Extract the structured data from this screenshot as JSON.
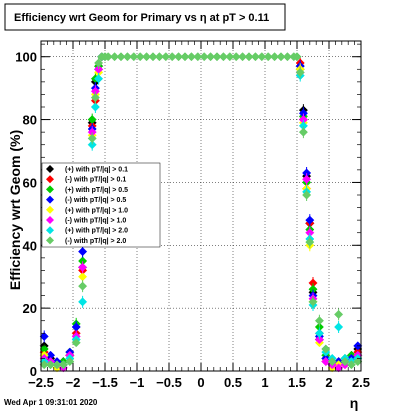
{
  "chart_data": {
    "type": "scatter",
    "title": "Efficiency wrt Geom for Primary vs   η at pT > 0.11",
    "xlabel": "η",
    "ylabel": "Efficiency wrt Geom (%)",
    "xlim": [
      -2.5,
      2.5
    ],
    "ylim": [
      0,
      105
    ],
    "xticks": [
      -2.5,
      -2,
      -1.5,
      -1,
      -0.5,
      0,
      0.5,
      1,
      1.5,
      2,
      2.5
    ],
    "xtick_labels": [
      "−2.5",
      "−2",
      "−1.5",
      "−1",
      "−0.5",
      "0",
      "0.5",
      "1",
      "1.5",
      "2",
      "2.5"
    ],
    "yticks": [
      0,
      20,
      40,
      60,
      80,
      100
    ],
    "ytick_labels": [
      "0",
      "20",
      "40",
      "60",
      "80",
      "100"
    ],
    "grid": true,
    "legend_position": "left-middle",
    "series": [
      {
        "name": "(+) with pT/|q| > 0.1",
        "color": "#000000",
        "x": [
          -2.45,
          -2.35,
          -2.25,
          -2.15,
          -2.05,
          -1.95,
          -1.85,
          -1.75,
          -1.7,
          -1.65,
          -1.6,
          -1.55,
          -1.5,
          1.5,
          1.55,
          1.6,
          1.65,
          1.7,
          1.75,
          1.85,
          1.95,
          2.05,
          2.15,
          2.25,
          2.35,
          2.45
        ],
        "y": [
          8,
          4,
          2,
          3,
          5,
          14,
          33,
          62,
          79,
          92,
          97,
          100,
          100,
          100,
          97,
          83,
          62,
          47,
          25,
          10,
          3,
          2,
          2,
          3,
          5,
          7
        ]
      },
      {
        "name": "(-) with pT/|q| > 0.1",
        "color": "#ff0000",
        "x": [
          -2.45,
          -2.35,
          -2.25,
          -2.15,
          -2.05,
          -1.95,
          -1.85,
          -1.75,
          -1.7,
          -1.65,
          -1.6,
          -1.55,
          -1.5,
          1.5,
          1.55,
          1.6,
          1.65,
          1.7,
          1.75,
          1.85,
          1.95,
          2.05,
          2.15,
          2.25,
          2.35,
          2.45
        ],
        "y": [
          6,
          3,
          2,
          2,
          5,
          12,
          32,
          60,
          78,
          86,
          96,
          100,
          100,
          100,
          98,
          80,
          58,
          47,
          28,
          12,
          4,
          2,
          3,
          2,
          4,
          6
        ]
      },
      {
        "name": "(+) with pT/|q| > 0.5",
        "color": "#00cc00",
        "x": [
          -2.45,
          -2.35,
          -2.25,
          -2.15,
          -2.05,
          -1.95,
          -1.85,
          -1.75,
          -1.7,
          -1.65,
          -1.6,
          -1.55,
          -1.5,
          1.5,
          1.55,
          1.6,
          1.65,
          1.7,
          1.75,
          1.85,
          1.95,
          2.05,
          2.15,
          2.25,
          2.35,
          2.45
        ],
        "y": [
          7,
          3,
          2,
          3,
          6,
          15,
          35,
          63,
          80,
          93,
          97,
          100,
          100,
          100,
          96,
          81,
          60,
          45,
          26,
          14,
          5,
          3,
          2,
          4,
          5,
          5
        ]
      },
      {
        "name": "(-) with pT/|q| > 0.5",
        "color": "#0000ff",
        "x": [
          -2.45,
          -2.35,
          -2.25,
          -2.15,
          -2.05,
          -1.95,
          -1.85,
          -1.75,
          -1.7,
          -1.65,
          -1.6,
          -1.55,
          -1.5,
          1.5,
          1.55,
          1.6,
          1.65,
          1.7,
          1.75,
          1.85,
          1.95,
          2.05,
          2.15,
          2.25,
          2.35,
          2.45
        ],
        "y": [
          11,
          5,
          3,
          2,
          6,
          14,
          38,
          61,
          77,
          90,
          96,
          100,
          100,
          100,
          97,
          82,
          63,
          48,
          24,
          11,
          4,
          2,
          3,
          3,
          4,
          8
        ]
      },
      {
        "name": "(+) with pT/|q| > 1.0",
        "color": "#ffff00",
        "x": [
          -2.45,
          -2.35,
          -2.25,
          -2.15,
          -2.05,
          -1.95,
          -1.85,
          -1.75,
          -1.7,
          -1.65,
          -1.6,
          -1.55,
          -1.5,
          1.5,
          1.55,
          1.6,
          1.65,
          1.7,
          1.75,
          1.85,
          1.95,
          2.05,
          2.15,
          2.25,
          2.35,
          2.45
        ],
        "y": [
          5,
          2,
          1,
          2,
          4,
          10,
          30,
          58,
          75,
          88,
          95,
          100,
          100,
          100,
          96,
          79,
          58,
          40,
          22,
          9,
          3,
          1,
          2,
          2,
          3,
          4
        ]
      },
      {
        "name": "(-) with pT/|q| > 1.0",
        "color": "#ff00ff",
        "x": [
          -2.45,
          -2.35,
          -2.25,
          -2.15,
          -2.05,
          -1.95,
          -1.85,
          -1.75,
          -1.7,
          -1.65,
          -1.6,
          -1.55,
          -1.5,
          1.5,
          1.55,
          1.6,
          1.65,
          1.7,
          1.75,
          1.85,
          1.95,
          2.05,
          2.15,
          2.25,
          2.35,
          2.45
        ],
        "y": [
          4,
          3,
          2,
          1,
          5,
          11,
          33,
          59,
          76,
          89,
          96,
          100,
          100,
          100,
          95,
          80,
          61,
          44,
          23,
          10,
          3,
          2,
          1,
          2,
          3,
          5
        ]
      },
      {
        "name": "(+) with pT/|q| > 2.0",
        "color": "#00e5e5",
        "x": [
          -2.45,
          -2.35,
          -2.25,
          -2.15,
          -2.05,
          -1.95,
          -1.85,
          -1.75,
          -1.7,
          -1.65,
          -1.6,
          -1.55,
          -1.5,
          1.5,
          1.55,
          1.6,
          1.65,
          1.7,
          1.75,
          1.85,
          1.95,
          2.05,
          2.15,
          2.25,
          2.35,
          2.45
        ],
        "y": [
          3,
          2,
          2,
          2,
          4,
          10,
          22,
          55,
          72,
          84,
          93,
          100,
          100,
          100,
          94,
          78,
          57,
          42,
          21,
          12,
          6,
          4,
          14,
          4,
          3,
          4
        ]
      },
      {
        "name": "(-) with pT/|q| > 2.0",
        "color": "#66cc66",
        "x": [
          -2.45,
          -2.35,
          -2.25,
          -2.15,
          -2.05,
          -1.95,
          -1.85,
          -1.75,
          -1.7,
          -1.65,
          -1.6,
          -1.55,
          -1.5,
          -1.45,
          -1.35,
          -1.25,
          -1.15,
          -1.05,
          -0.95,
          -0.85,
          -0.75,
          -0.65,
          -0.55,
          -0.45,
          -0.35,
          -0.25,
          -0.15,
          -0.05,
          0.05,
          0.15,
          0.25,
          0.35,
          0.45,
          0.55,
          0.65,
          0.75,
          0.85,
          0.95,
          1.05,
          1.15,
          1.25,
          1.35,
          1.45,
          1.5,
          1.55,
          1.6,
          1.65,
          1.7,
          1.75,
          1.85,
          1.95,
          2.05,
          2.15,
          2.25,
          2.35,
          2.45
        ],
        "y": [
          2,
          2,
          2,
          2,
          3,
          9,
          27,
          57,
          74,
          87,
          98,
          100,
          100,
          100,
          100,
          100,
          100,
          100,
          100,
          100,
          100,
          100,
          100,
          100,
          100,
          100,
          100,
          100,
          100,
          100,
          100,
          100,
          100,
          100,
          100,
          100,
          100,
          100,
          100,
          100,
          100,
          100,
          100,
          100,
          95,
          76,
          56,
          41,
          22,
          16,
          7,
          3,
          18,
          3,
          2,
          3
        ]
      }
    ]
  },
  "footer": {
    "timestamp": "Wed Apr  1 09:31:01 2020"
  }
}
